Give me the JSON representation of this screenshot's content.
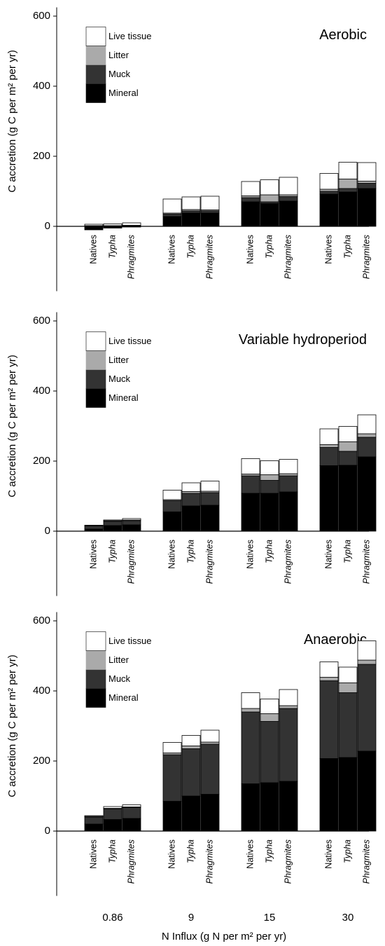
{
  "chart_data": [
    {
      "type": "bar",
      "stacked": true,
      "title": "Aerobic",
      "ylabel": "C accretion (g C per m² per yr)",
      "categories": [
        "Natives",
        "Typha",
        "Phragmites",
        "Natives",
        "Typha",
        "Phragmites",
        "Natives",
        "Typha",
        "Phragmites",
        "Natives",
        "Typha",
        "Phragmites"
      ],
      "series": [
        {
          "name": "Mineral",
          "color": "#000000",
          "values": [
            -10,
            -5,
            -2,
            28,
            38,
            38,
            70,
            65,
            72,
            92,
            98,
            108
          ]
        },
        {
          "name": "Muck",
          "color": "#333333",
          "values": [
            1,
            1,
            2,
            7,
            6,
            6,
            12,
            5,
            13,
            8,
            10,
            15
          ]
        },
        {
          "name": "Litter",
          "color": "#aaaaaa",
          "values": [
            1,
            1,
            1,
            3,
            4,
            3,
            5,
            20,
            5,
            6,
            27,
            6
          ]
        },
        {
          "name": "Live tissue",
          "color": "#ffffff",
          "values": [
            4,
            5,
            7,
            40,
            36,
            39,
            41,
            43,
            50,
            45,
            48,
            53
          ]
        }
      ],
      "ylim": [
        -185,
        625
      ],
      "yticks": [
        0,
        200,
        400,
        600
      ],
      "legend": "upper left"
    },
    {
      "type": "bar",
      "stacked": true,
      "title": "Variable  hydroperiod",
      "ylabel": "C accretion (g C per m² per yr)",
      "categories": [
        "Natives",
        "Typha",
        "Phragmites",
        "Natives",
        "Typha",
        "Phragmites",
        "Natives",
        "Typha",
        "Phragmites",
        "Natives",
        "Typha",
        "Phragmites"
      ],
      "series": [
        {
          "name": "Mineral",
          "color": "#000000",
          "values": [
            6,
            16,
            18,
            55,
            72,
            74,
            108,
            108,
            112,
            187,
            188,
            212
          ]
        },
        {
          "name": "Muck",
          "color": "#333333",
          "values": [
            9,
            12,
            12,
            32,
            36,
            36,
            50,
            37,
            46,
            52,
            40,
            56
          ]
        },
        {
          "name": "Litter",
          "color": "#aaaaaa",
          "values": [
            1,
            2,
            2,
            3,
            5,
            4,
            5,
            16,
            6,
            8,
            27,
            10
          ]
        },
        {
          "name": "Live tissue",
          "color": "#ffffff",
          "values": [
            1,
            2,
            4,
            27,
            25,
            29,
            44,
            40,
            41,
            45,
            44,
            54
          ]
        }
      ],
      "ylim": [
        -185,
        625
      ],
      "yticks": [
        0,
        200,
        400,
        600
      ],
      "legend": "upper left"
    },
    {
      "type": "bar",
      "stacked": true,
      "title": "Anaerobic",
      "ylabel": "C accretion (g C per m² per yr)",
      "categories": [
        "Natives",
        "Typha",
        "Phragmites",
        "Natives",
        "Typha",
        "Phragmites",
        "Natives",
        "Typha",
        "Phragmites",
        "Natives",
        "Typha",
        "Phragmites"
      ],
      "series": [
        {
          "name": "Mineral",
          "color": "#000000",
          "values": [
            20,
            33,
            36,
            85,
            100,
            105,
            135,
            138,
            142,
            207,
            210,
            228
          ]
        },
        {
          "name": "Muck",
          "color": "#333333",
          "values": [
            20,
            30,
            31,
            133,
            135,
            143,
            205,
            175,
            208,
            222,
            185,
            248
          ]
        },
        {
          "name": "Litter",
          "color": "#aaaaaa",
          "values": [
            2,
            2,
            2,
            5,
            8,
            6,
            10,
            22,
            8,
            10,
            28,
            12
          ]
        },
        {
          "name": "Live tissue",
          "color": "#ffffff",
          "values": [
            2,
            5,
            6,
            30,
            30,
            34,
            45,
            42,
            46,
            44,
            45,
            55
          ]
        }
      ],
      "ylim": [
        -185,
        625
      ],
      "yticks": [
        0,
        200,
        400,
        600
      ],
      "legend": "upper left",
      "groups": [
        "0.86",
        "9",
        "15",
        "30"
      ],
      "xlabel": "N Influx (g N per m² per yr)"
    }
  ]
}
